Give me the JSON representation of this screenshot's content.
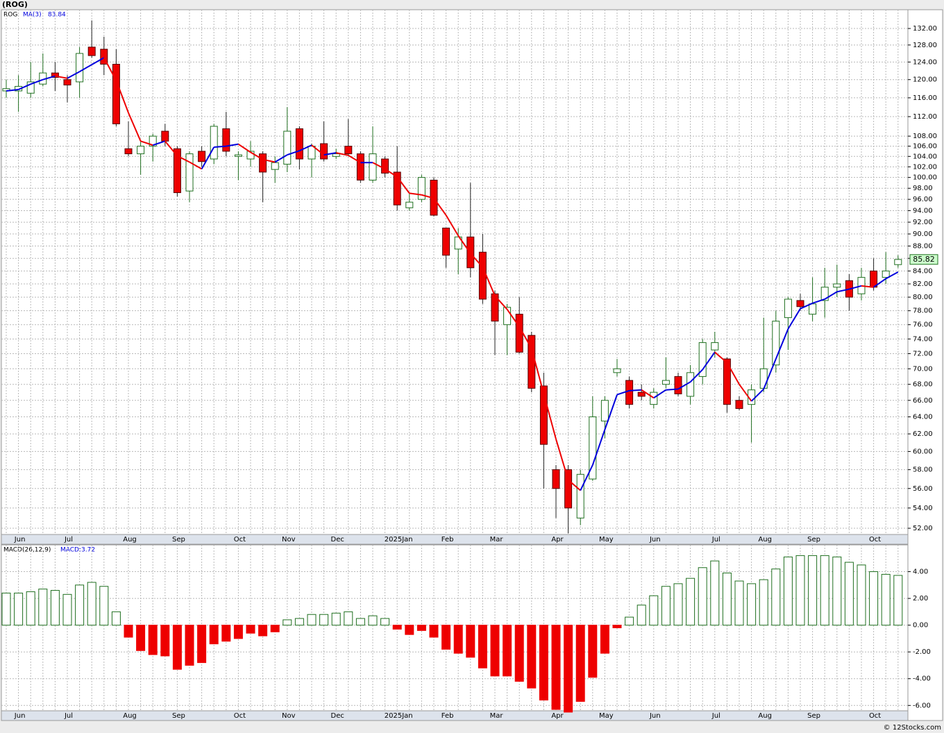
{
  "source": "© 12Stocks.com",
  "chart_data": [
    {
      "type": "candlestick",
      "title": "(ROG)",
      "categories": [
        null,
        "Jun",
        null,
        null,
        null,
        "Jul",
        null,
        null,
        null,
        null,
        "Aug",
        null,
        null,
        null,
        "Sep",
        null,
        null,
        null,
        null,
        "Oct",
        null,
        null,
        null,
        "Nov",
        null,
        null,
        null,
        "Dec",
        null,
        null,
        null,
        null,
        "2025Jan",
        null,
        null,
        null,
        "Feb",
        null,
        null,
        null,
        "Mar",
        null,
        null,
        null,
        null,
        "Apr",
        null,
        null,
        null,
        "May",
        null,
        null,
        null,
        "Jun",
        null,
        null,
        null,
        null,
        "Jul",
        null,
        null,
        null,
        "Aug",
        null,
        null,
        null,
        "Sep",
        null,
        null,
        null,
        null,
        "Oct",
        null,
        null
      ],
      "series": [
        {
          "name": "ROG",
          "up_color": "#1f6f1f",
          "down_color": "#ee0000",
          "open": [
            117.5,
            117.5,
            117,
            119,
            121.5,
            120,
            119.5,
            127.5,
            127,
            123.5,
            105.5,
            104.5,
            106,
            109,
            105.5,
            97.5,
            105,
            103.5,
            109.5,
            104,
            103.5,
            104.5,
            101.5,
            102.5,
            109.5,
            103.5,
            106.5,
            104,
            106,
            104.5,
            99.5,
            103.5,
            101,
            94.5,
            96,
            99.5,
            91,
            87.5,
            89.5,
            87,
            80.5,
            76,
            77.5,
            74.5,
            67.8,
            58,
            58,
            53,
            57,
            63.5,
            69.5,
            68.5,
            67,
            65.5,
            68,
            69,
            66.5,
            69,
            72.5,
            71.3,
            66,
            65.5,
            67.5,
            70.5,
            77,
            79.5,
            77.5,
            79.5,
            81.5,
            82.5,
            80.5,
            84,
            83,
            85
          ],
          "high": [
            120,
            121,
            124,
            126,
            124,
            121,
            127.5,
            134,
            130,
            127,
            111,
            107,
            108.5,
            110.5,
            106,
            105,
            106,
            110.5,
            113,
            105,
            107,
            105,
            104,
            114,
            110,
            106.5,
            111,
            105.5,
            111.5,
            105,
            110,
            104,
            106,
            97,
            100.5,
            100,
            91,
            91,
            99,
            90,
            81,
            79,
            80,
            75,
            69.5,
            58.5,
            58.5,
            58,
            66.5,
            66.5,
            71.3,
            69,
            68,
            67.5,
            71.5,
            69.5,
            70.5,
            74,
            75,
            71.5,
            66.5,
            68,
            77,
            78,
            80,
            80.5,
            83,
            84.5,
            85,
            83.5,
            84.5,
            86,
            87,
            86.5
          ],
          "low": [
            116,
            113,
            116,
            118.5,
            117.5,
            115,
            116,
            125,
            121,
            110,
            104,
            100.5,
            103,
            106,
            96.5,
            95.5,
            102,
            102.5,
            104,
            99.5,
            102,
            95.5,
            99,
            101,
            101.5,
            100,
            103,
            103.5,
            104,
            99,
            99,
            100,
            94,
            94,
            95.5,
            93,
            84.5,
            83.5,
            83,
            79,
            71.8,
            71.8,
            72,
            67,
            56,
            53,
            51.5,
            52.3,
            56.8,
            61.5,
            69,
            65,
            66,
            65,
            67.5,
            66.5,
            65.5,
            68,
            71.5,
            64.5,
            64.8,
            61,
            67,
            69.5,
            72.5,
            78,
            76.5,
            77,
            80,
            78,
            79.5,
            81,
            82,
            84.5
          ],
          "close": [
            118,
            118.5,
            119.5,
            121.5,
            120.5,
            118.8,
            126,
            125.5,
            123.5,
            110.5,
            104.5,
            106,
            108,
            107,
            97.2,
            104.5,
            103,
            110,
            105,
            104.3,
            105,
            101,
            102.8,
            109,
            103.5,
            106,
            103.5,
            104.5,
            104.5,
            99.5,
            104.5,
            100.8,
            95,
            95.5,
            100,
            93.2,
            86.5,
            89.5,
            84.5,
            79.7,
            76.5,
            78.5,
            72.2,
            67.5,
            60.8,
            56,
            54,
            57.5,
            64,
            66,
            70,
            65.5,
            66.5,
            67,
            68.5,
            66.8,
            69.5,
            73.5,
            73.5,
            65.5,
            65,
            67.3,
            70,
            76.5,
            79.7,
            78.6,
            79,
            81.5,
            82,
            80,
            83,
            81.5,
            84,
            85.82
          ]
        },
        {
          "name": "MA(3)",
          "up_color": "#0000dd",
          "down_color": "#ee0000",
          "values": [
            117.5,
            117.8,
            119,
            120,
            120.8,
            120.3,
            121.8,
            123.4,
            125,
            119.8,
            112.8,
            107,
            106.2,
            107,
            104.1,
            102.9,
            101.6,
            105.8,
            106,
            106.4,
            104.8,
            103.4,
            102.9,
            104.3,
            105.1,
            106.2,
            104.3,
            104.7,
            104.2,
            102.8,
            102.8,
            101.6,
            100.1,
            97.1,
            96.8,
            96.2,
            93.2,
            89.7,
            86.8,
            84.6,
            80.2,
            78.2,
            75.7,
            72.7,
            66.8,
            61.4,
            56.9,
            55.8,
            58.5,
            62.5,
            66.7,
            67.2,
            67.3,
            66.3,
            67.3,
            67.4,
            68.3,
            69.9,
            72.2,
            70.8,
            68,
            65.9,
            67.4,
            71.3,
            75.4,
            78.3,
            79.1,
            79.7,
            80.8,
            81.2,
            81.7,
            81.5,
            82.8,
            83.84
          ]
        }
      ],
      "log_scale": true,
      "grid": true,
      "ylim": [
        51.4,
        136.7
      ],
      "yticks": [
        {
          "value": 52,
          "label": "52.00"
        },
        {
          "value": 54,
          "label": "54.00"
        },
        {
          "value": 56,
          "label": "56.00"
        },
        {
          "value": 58,
          "label": "58.00"
        },
        {
          "value": 60,
          "label": "60.00"
        },
        {
          "value": 62,
          "label": "62.00"
        },
        {
          "value": 64,
          "label": "64.00"
        },
        {
          "value": 66,
          "label": "66.00"
        },
        {
          "value": 68,
          "label": "68.00"
        },
        {
          "value": 70,
          "label": "70.00"
        },
        {
          "value": 72,
          "label": "72.00"
        },
        {
          "value": 74,
          "label": "74.00"
        },
        {
          "value": 76,
          "label": "76.00"
        },
        {
          "value": 78,
          "label": "78.00"
        },
        {
          "value": 80,
          "label": "80.00"
        },
        {
          "value": 82,
          "label": "82.00"
        },
        {
          "value": 84,
          "label": "84.00"
        },
        {
          "value": 86,
          "label": "86.00"
        },
        {
          "value": 88,
          "label": "88.00"
        },
        {
          "value": 90,
          "label": "90.00"
        },
        {
          "value": 92,
          "label": "92.00"
        },
        {
          "value": 94,
          "label": "94.00"
        },
        {
          "value": 96,
          "label": "96.00"
        },
        {
          "value": 98,
          "label": "98.00"
        },
        {
          "value": 100,
          "label": "100.00"
        },
        {
          "value": 102,
          "label": "102.00"
        },
        {
          "value": 104,
          "label": "104.00"
        },
        {
          "value": 106,
          "label": "106.00"
        },
        {
          "value": 108,
          "label": "108.00"
        },
        {
          "value": 112,
          "label": "112.00"
        },
        {
          "value": 116,
          "label": "116.00"
        },
        {
          "value": 120,
          "label": "120.00"
        },
        {
          "value": 124,
          "label": "124.00"
        },
        {
          "value": 128,
          "label": "128.00"
        },
        {
          "value": 132,
          "label": "132.00"
        }
      ]
    },
    {
      "type": "bar",
      "name": "MACD(26,12,9)",
      "legend": "MACD:3.72",
      "categories": [
        null,
        "Jun",
        null,
        null,
        null,
        "Jul",
        null,
        null,
        null,
        null,
        "Aug",
        null,
        null,
        null,
        "Sep",
        null,
        null,
        null,
        null,
        "Oct",
        null,
        null,
        null,
        "Nov",
        null,
        null,
        null,
        "Dec",
        null,
        null,
        null,
        null,
        "2025Jan",
        null,
        null,
        null,
        "Feb",
        null,
        null,
        null,
        "Mar",
        null,
        null,
        null,
        null,
        "Apr",
        null,
        null,
        null,
        "May",
        null,
        null,
        null,
        "Jun",
        null,
        null,
        null,
        null,
        "Jul",
        null,
        null,
        null,
        "Aug",
        null,
        null,
        null,
        "Sep",
        null,
        null,
        null,
        null,
        "Oct",
        null,
        null
      ],
      "values": [
        2.4,
        2.4,
        2.5,
        2.7,
        2.6,
        2.3,
        3.0,
        3.2,
        2.9,
        1.0,
        -0.9,
        -1.9,
        -2.2,
        -2.3,
        -3.3,
        -3.0,
        -2.8,
        -1.4,
        -1.2,
        -1.0,
        -0.6,
        -0.8,
        -0.5,
        0.4,
        0.5,
        0.8,
        0.8,
        0.9,
        1.0,
        0.5,
        0.7,
        0.5,
        -0.3,
        -0.7,
        -0.4,
        -0.9,
        -1.8,
        -2.1,
        -2.4,
        -3.2,
        -3.8,
        -3.8,
        -4.2,
        -4.7,
        -5.6,
        -6.3,
        -6.5,
        -5.7,
        -3.9,
        -2.1,
        -0.2,
        0.6,
        1.5,
        2.2,
        2.9,
        3.1,
        3.5,
        4.3,
        4.8,
        3.9,
        3.3,
        3.1,
        3.4,
        4.2,
        5.1,
        5.2,
        5.2,
        5.2,
        5.1,
        4.7,
        4.5,
        4.0,
        3.8,
        3.72
      ],
      "up_color": "#1f6f1f",
      "down_color": "#ee0000",
      "grid": true,
      "ylim": [
        -6.4,
        6.0
      ],
      "yticks": [
        {
          "value": -6,
          "label": "-6.00"
        },
        {
          "value": -4,
          "label": "-4.00"
        },
        {
          "value": -2,
          "label": "-2.00"
        },
        {
          "value": 0,
          "label": "0.00"
        },
        {
          "value": 2,
          "label": "2.00"
        },
        {
          "value": 4,
          "label": "4.00"
        }
      ]
    }
  ]
}
